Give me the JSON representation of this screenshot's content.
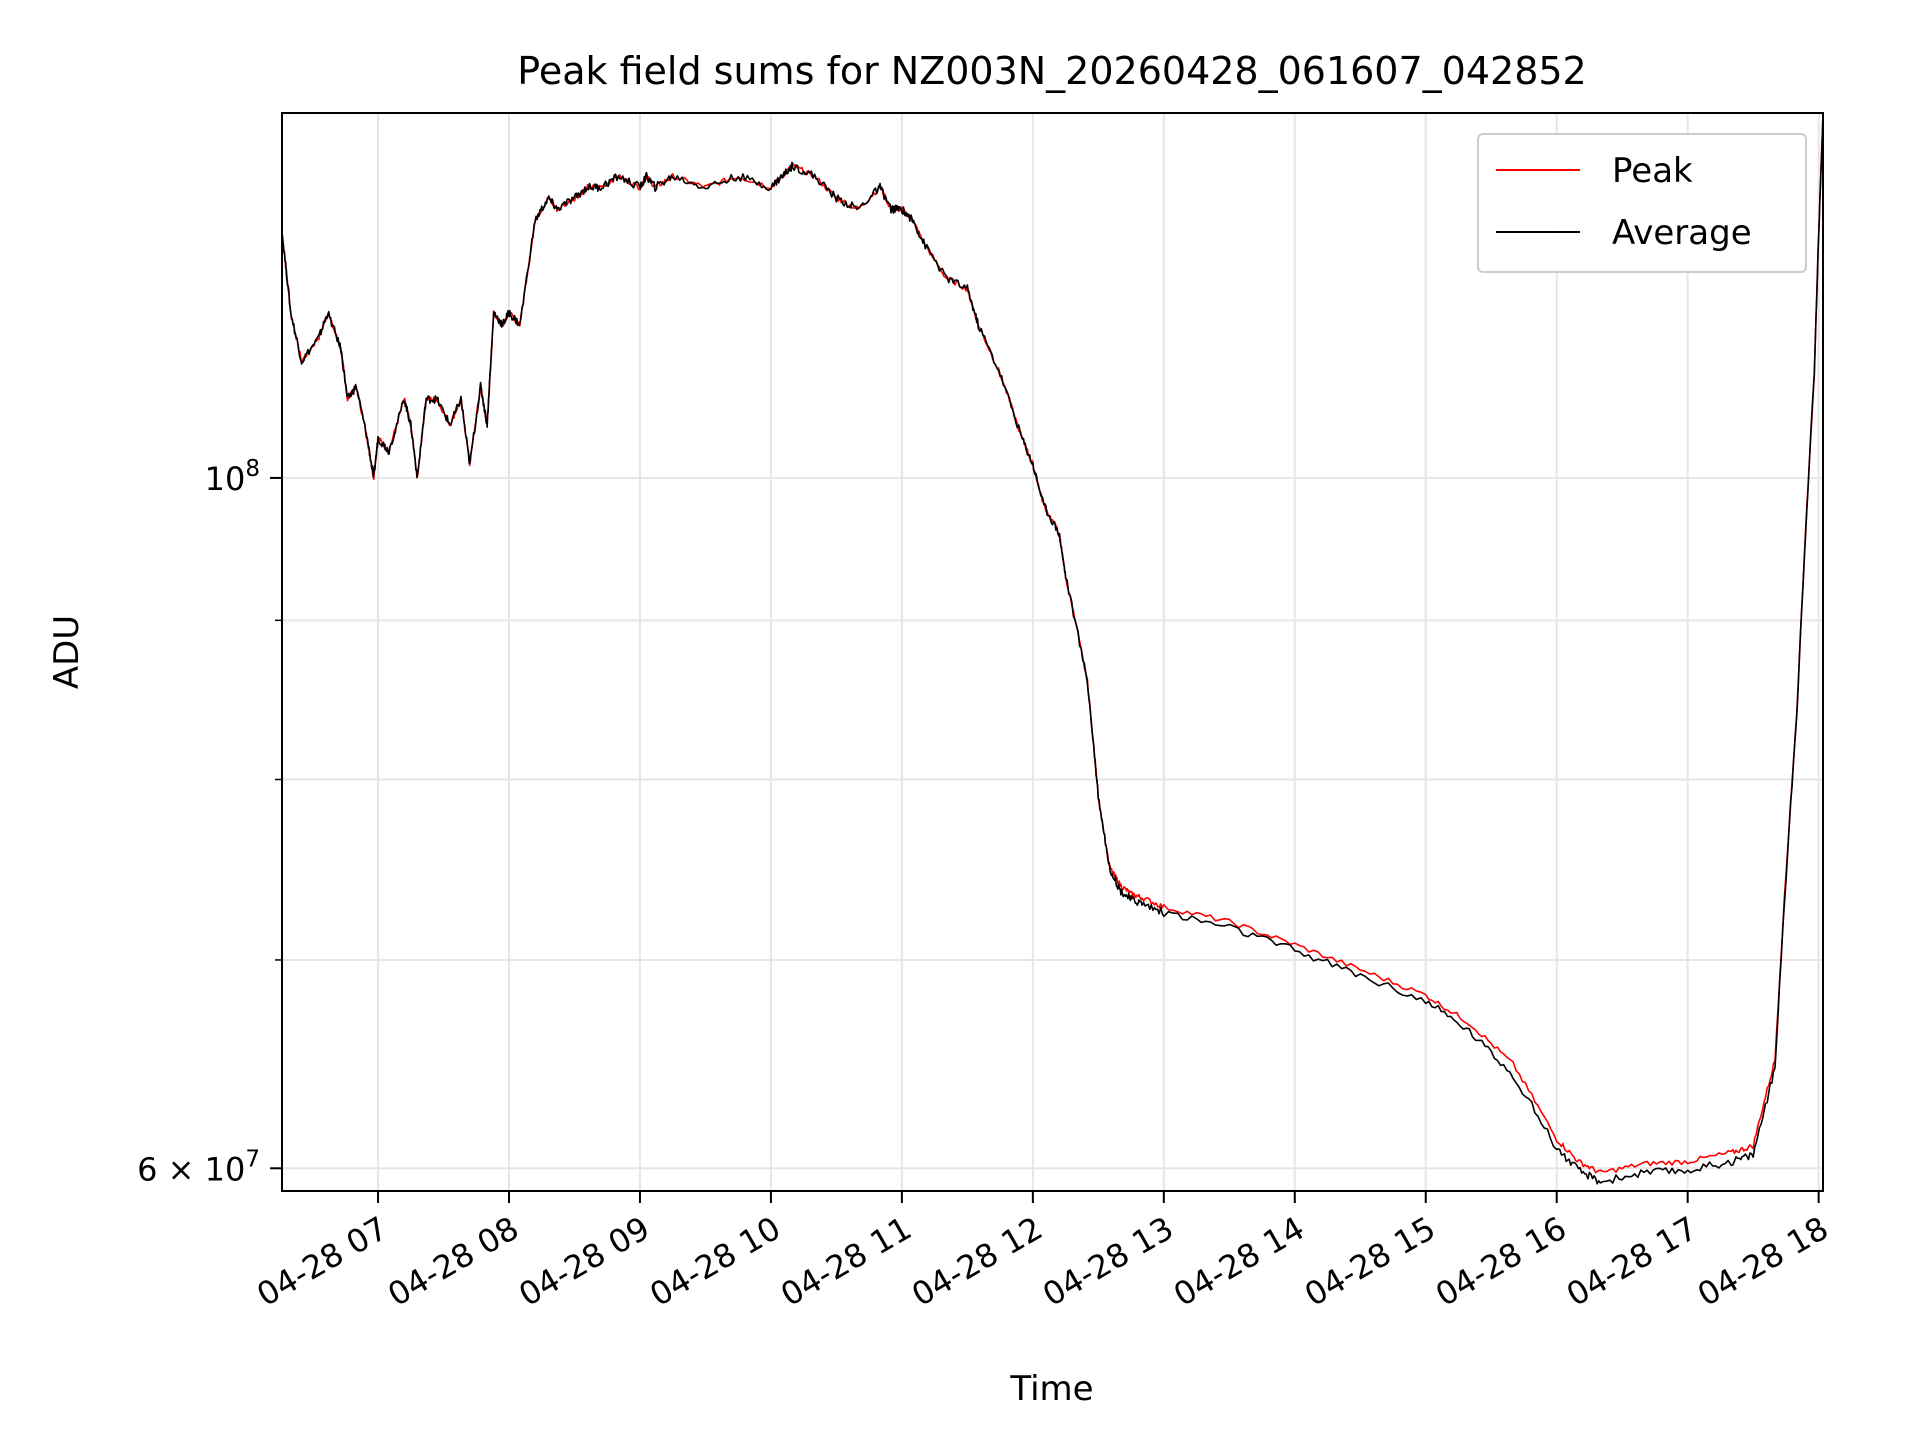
{
  "chart_data": {
    "type": "line",
    "title": "Peak field sums for NZ003N_20260428_061607_042852",
    "xlabel": "Time",
    "ylabel": "ADU",
    "yscale": "log",
    "xlim": [
      "2026-04-28 06:16",
      "2026-04-28 18:02"
    ],
    "ylim": [
      59000000,
      131000000
    ],
    "grid": true,
    "legend_position": "top-right",
    "x_ticks": [
      "04-28 07",
      "04-28 08",
      "04-28 09",
      "04-28 10",
      "04-28 11",
      "04-28 12",
      "04-28 13",
      "04-28 14",
      "04-28 15",
      "04-28 16",
      "04-28 17",
      "04-28 18"
    ],
    "y_tick_labels": [
      {
        "value": 100000000,
        "mantissa": "",
        "base": "10",
        "exponent": "8"
      },
      {
        "value": 60000000,
        "mantissa": "6 × ",
        "base": "10",
        "exponent": "7"
      }
    ],
    "y_minor_grid": [
      70000000,
      80000000,
      90000000
    ],
    "x": [
      "2026-04-28 06:16",
      "2026-04-28 06:20",
      "2026-04-28 06:25",
      "2026-04-28 06:33",
      "2026-04-28 06:37",
      "2026-04-28 06:43",
      "2026-04-28 06:46",
      "2026-04-28 06:50",
      "2026-04-28 06:55",
      "2026-04-28 06:58",
      "2026-04-28 07:00",
      "2026-04-28 07:05",
      "2026-04-28 07:12",
      "2026-04-28 07:15",
      "2026-04-28 07:18",
      "2026-04-28 07:22",
      "2026-04-28 07:27",
      "2026-04-28 07:33",
      "2026-04-28 07:38",
      "2026-04-28 07:42",
      "2026-04-28 07:47",
      "2026-04-28 07:50",
      "2026-04-28 07:53",
      "2026-04-28 07:57",
      "2026-04-28 08:00",
      "2026-04-28 08:05",
      "2026-04-28 08:12",
      "2026-04-28 08:18",
      "2026-04-28 08:22",
      "2026-04-28 08:30",
      "2026-04-28 08:36",
      "2026-04-28 08:42",
      "2026-04-28 08:50",
      "2026-04-28 09:00",
      "2026-04-28 09:03",
      "2026-04-28 09:07",
      "2026-04-28 09:15",
      "2026-04-28 09:30",
      "2026-04-28 09:45",
      "2026-04-28 10:00",
      "2026-04-28 10:05",
      "2026-04-28 10:10",
      "2026-04-28 10:20",
      "2026-04-28 10:30",
      "2026-04-28 10:40",
      "2026-04-28 10:50",
      "2026-04-28 10:55",
      "2026-04-28 11:00",
      "2026-04-28 11:05",
      "2026-04-28 11:10",
      "2026-04-28 11:20",
      "2026-04-28 11:30",
      "2026-04-28 11:35",
      "2026-04-28 11:45",
      "2026-04-28 11:55",
      "2026-04-28 12:00",
      "2026-04-28 12:05",
      "2026-04-28 12:12",
      "2026-04-28 12:15",
      "2026-04-28 12:25",
      "2026-04-28 12:30",
      "2026-04-28 12:35",
      "2026-04-28 12:40",
      "2026-04-28 12:45",
      "2026-04-28 12:50",
      "2026-04-28 13:00",
      "2026-04-28 13:30",
      "2026-04-28 14:00",
      "2026-04-28 14:30",
      "2026-04-28 15:00",
      "2026-04-28 15:20",
      "2026-04-28 15:40",
      "2026-04-28 16:00",
      "2026-04-28 16:10",
      "2026-04-28 16:20",
      "2026-04-28 16:40",
      "2026-04-28 17:00",
      "2026-04-28 17:20",
      "2026-04-28 17:30",
      "2026-04-28 17:40",
      "2026-04-28 17:50",
      "2026-04-28 17:58",
      "2026-04-28 18:02"
    ],
    "series": [
      {
        "name": "Peak",
        "color": "#ff0000",
        "values": [
          120000000,
          113000000,
          109000000,
          111000000,
          113000000,
          110000000,
          106000000,
          107000000,
          103000000,
          100000000,
          103000000,
          102000000,
          106000000,
          104000000,
          100000000,
          106000000,
          106000000,
          104000000,
          106000000,
          101000000,
          107000000,
          104000000,
          113000000,
          112000000,
          113000000,
          112000000,
          121000000,
          123000000,
          122000000,
          123000000,
          124000000,
          124000000,
          125000000,
          124000000,
          125000000,
          124000000,
          125000000,
          124000000,
          125000000,
          124000000,
          125000000,
          126000000,
          125000000,
          123000000,
          122000000,
          124000000,
          122000000,
          122000000,
          121000000,
          119000000,
          116000000,
          115000000,
          112000000,
          108000000,
          103000000,
          101000000,
          98000000,
          96000000,
          93000000,
          86000000,
          79000000,
          75000000,
          74000000,
          73500000,
          73300000,
          72800000,
          72000000,
          70800000,
          69500000,
          68200000,
          66800000,
          64800000,
          61300000,
          60300000,
          59800000,
          60200000,
          60300000,
          60700000,
          61000000,
          65000000,
          84000000,
          108000000,
          131000000
        ]
      },
      {
        "name": "Average",
        "color": "#000000",
        "values": [
          120000000,
          113000000,
          109000000,
          111000000,
          113000000,
          110000000,
          106000000,
          107000000,
          103000000,
          100000000,
          103000000,
          102000000,
          106000000,
          104000000,
          100000000,
          106000000,
          106000000,
          104000000,
          106000000,
          101000000,
          107000000,
          104000000,
          113000000,
          112000000,
          113000000,
          112000000,
          121000000,
          123000000,
          122000000,
          123000000,
          124000000,
          124000000,
          125000000,
          124000000,
          125000000,
          124000000,
          125000000,
          124000000,
          125000000,
          124000000,
          125000000,
          126000000,
          125000000,
          123000000,
          122000000,
          124000000,
          122000000,
          122000000,
          121000000,
          119000000,
          116000000,
          115000000,
          112000000,
          108000000,
          103000000,
          101000000,
          98000000,
          96000000,
          93000000,
          86000000,
          79000000,
          75000000,
          73700000,
          73200000,
          73000000,
          72500000,
          71700000,
          70500000,
          69200000,
          67900000,
          66400000,
          64300000,
          60900000,
          59900000,
          59400000,
          59800000,
          59900000,
          60300000,
          60600000,
          64600000,
          84000000,
          108000000,
          131000000
        ]
      }
    ]
  }
}
